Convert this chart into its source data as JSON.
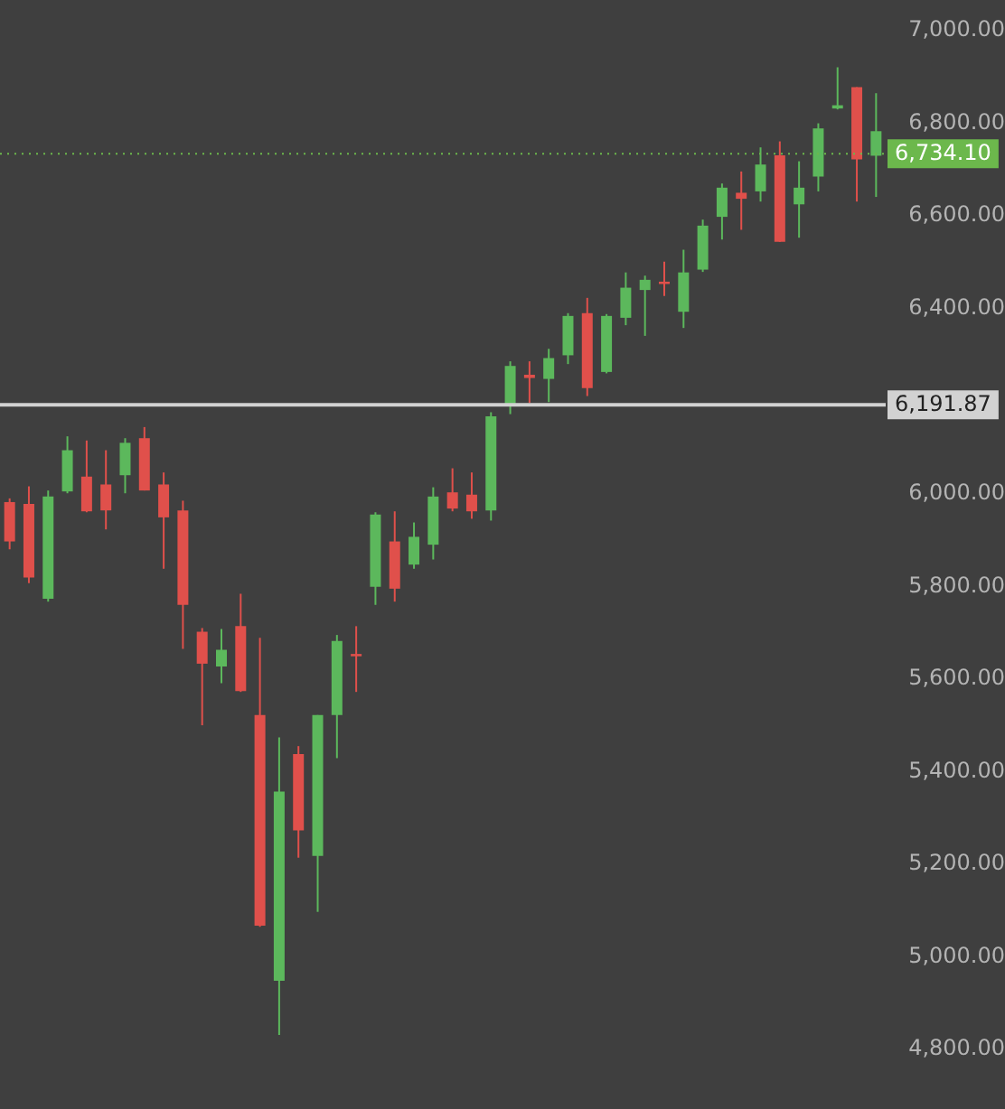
{
  "chart_data": {
    "type": "candlestick",
    "categories": [
      null,
      null,
      null,
      null,
      null,
      null,
      null,
      null,
      null,
      null,
      null,
      null,
      null,
      null,
      null,
      null,
      null,
      null,
      null,
      null,
      null,
      null,
      null,
      null,
      null,
      null,
      null,
      null,
      null,
      null,
      null,
      null,
      null,
      null,
      null,
      null,
      null,
      null,
      null,
      null,
      null,
      null,
      null,
      null,
      null,
      null
    ],
    "ohlc": [
      [
        5982,
        5990,
        5880,
        5897
      ],
      [
        5978,
        6016,
        5807,
        5819
      ],
      [
        5773,
        6007,
        5767,
        5994
      ],
      [
        6005,
        6124,
        6001,
        6094
      ],
      [
        6037,
        6115,
        5960,
        5962
      ],
      [
        6020,
        6094,
        5923,
        5964
      ],
      [
        6040,
        6120,
        6001,
        6110
      ],
      [
        6120,
        6144,
        6007,
        6007
      ],
      [
        6020,
        6046,
        5838,
        5949
      ],
      [
        5964,
        5985,
        5665,
        5760
      ],
      [
        5702,
        5710,
        5500,
        5633
      ],
      [
        5627,
        5708,
        5591,
        5663
      ],
      [
        5714,
        5784,
        5572,
        5574
      ],
      [
        5522,
        5689,
        5065,
        5067
      ],
      [
        4948,
        5474,
        4831,
        5357
      ],
      [
        5438,
        5455,
        5214,
        5273
      ],
      [
        5218,
        5522,
        5097,
        5522
      ],
      [
        5522,
        5695,
        5429,
        5682
      ],
      [
        5654,
        5714,
        5572,
        5649
      ],
      [
        5799,
        5960,
        5760,
        5955
      ],
      [
        5897,
        5962,
        5767,
        5795
      ],
      [
        5847,
        5938,
        5838,
        5907
      ],
      [
        5890,
        6014,
        5858,
        5994
      ],
      [
        6003,
        6055,
        5962,
        5968
      ],
      [
        5998,
        6046,
        5946,
        5962
      ],
      [
        5964,
        6176,
        5942,
        6167
      ],
      [
        6189,
        6286,
        6172,
        6276
      ],
      [
        6257,
        6286,
        6196,
        6250
      ],
      [
        6248,
        6313,
        6198,
        6293
      ],
      [
        6299,
        6390,
        6280,
        6384
      ],
      [
        6390,
        6423,
        6211,
        6228
      ],
      [
        6263,
        6388,
        6260,
        6384
      ],
      [
        6380,
        6478,
        6364,
        6445
      ],
      [
        6440,
        6471,
        6341,
        6462
      ],
      [
        6458,
        6501,
        6427,
        6453
      ],
      [
        6393,
        6527,
        6358,
        6478
      ],
      [
        6484,
        6592,
        6479,
        6579
      ],
      [
        6598,
        6670,
        6549,
        6661
      ],
      [
        6650,
        6696,
        6570,
        6637
      ],
      [
        6653,
        6748,
        6631,
        6711
      ],
      [
        6731,
        6761,
        6544,
        6544
      ],
      [
        6625,
        6718,
        6553,
        6661
      ],
      [
        6685,
        6800,
        6653,
        6789
      ],
      [
        6832,
        6921,
        6830,
        6839
      ],
      [
        6878,
        6878,
        6631,
        6722
      ],
      [
        6730,
        6865,
        6641,
        6783
      ]
    ],
    "colors": [
      "#e0504b",
      "#e0504b",
      "#5cb85c",
      "#5cb85c",
      "#e0504b",
      "#e0504b",
      "#5cb85c",
      "#e0504b",
      "#e0504b",
      "#e0504b",
      "#e0504b",
      "#5cb85c",
      "#e0504b",
      "#e0504b",
      "#5cb85c",
      "#e0504b",
      "#5cb85c",
      "#5cb85c",
      "#e0504b",
      "#5cb85c",
      "#e0504b",
      "#5cb85c",
      "#5cb85c",
      "#e0504b",
      "#e0504b",
      "#5cb85c",
      "#5cb85c",
      "#e0504b",
      "#5cb85c",
      "#5cb85c",
      "#e0504b",
      "#5cb85c",
      "#5cb85c",
      "#5cb85c",
      "#e0504b",
      "#5cb85c",
      "#5cb85c",
      "#5cb85c",
      "#e0504b",
      "#5cb85c",
      "#e0504b",
      "#5cb85c",
      "#5cb85c",
      "#5cb85c",
      "#e0504b",
      "#5cb85c"
    ],
    "ylim": [
      4800,
      7000
    ],
    "yticks": [
      {
        "value": 4800,
        "label": "4,800.00"
      },
      {
        "value": 5000,
        "label": "5,000.00"
      },
      {
        "value": 5200,
        "label": "5,200.00"
      },
      {
        "value": 5400,
        "label": "5,400.00"
      },
      {
        "value": 5600,
        "label": "5,600.00"
      },
      {
        "value": 5800,
        "label": "5,800.00"
      },
      {
        "value": 6000,
        "label": "6,000.00"
      },
      {
        "value": 6400,
        "label": "6,400.00"
      },
      {
        "value": 6600,
        "label": "6,600.00"
      },
      {
        "value": 6800,
        "label": "6,800.00"
      },
      {
        "value": 7000,
        "label": "7,000.00"
      }
    ],
    "ref_lines": [
      {
        "axis": "y",
        "value": 6191.87,
        "label": "6,191.87",
        "color": "#d2d2d2",
        "line_style": "solid"
      },
      {
        "axis": "y",
        "value": 6734.1,
        "label": "6,734.10",
        "color": "#6cb84c",
        "line_style": "dotted"
      }
    ],
    "grid": false,
    "legend": false
  }
}
